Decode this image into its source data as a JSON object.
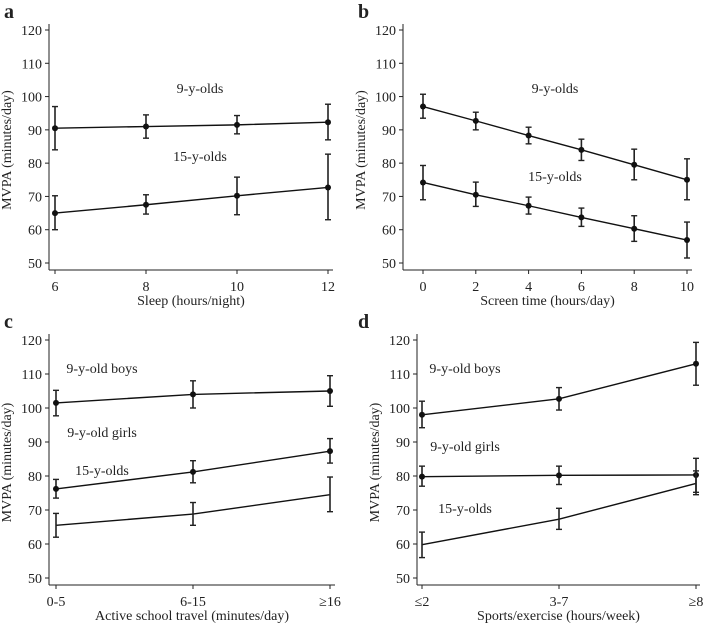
{
  "chart_data": [
    {
      "panel": "a",
      "type": "line",
      "xlabel": "Sleep (hours/night)",
      "ylabel": "MVPA (minutes/day)",
      "x": [
        6,
        8,
        10,
        12
      ],
      "xticks": [
        "6",
        "8",
        "10",
        "12"
      ],
      "ylim": [
        50,
        120
      ],
      "yticks": [
        "50",
        "60",
        "70",
        "80",
        "90",
        "100",
        "110",
        "120"
      ],
      "series": [
        {
          "name": "9-y-olds",
          "markers": true,
          "values": [
            90.5,
            91,
            91.5,
            92.3
          ],
          "lower": [
            84,
            87.5,
            88.8,
            87
          ],
          "upper": [
            97,
            94.5,
            94.3,
            97.7
          ]
        },
        {
          "name": "15-y-olds",
          "markers": true,
          "values": [
            65,
            67.5,
            70.2,
            72.7
          ],
          "lower": [
            60,
            64.7,
            64.5,
            63
          ],
          "upper": [
            70.2,
            70.5,
            75.8,
            82.7
          ]
        }
      ]
    },
    {
      "panel": "b",
      "type": "line",
      "xlabel": "Screen time (hours/day)",
      "ylabel": "MVPA (minutes/day)",
      "x": [
        0,
        2,
        4,
        6,
        8,
        10
      ],
      "xticks": [
        "0",
        "2",
        "4",
        "6",
        "8",
        "10"
      ],
      "ylim": [
        50,
        120
      ],
      "yticks": [
        "50",
        "60",
        "70",
        "80",
        "90",
        "100",
        "110",
        "120"
      ],
      "series": [
        {
          "name": "9-y-olds",
          "markers": true,
          "values": [
            97,
            92.7,
            88.3,
            84,
            79.5,
            75
          ],
          "lower": [
            93.5,
            90,
            85.8,
            80.8,
            75,
            69
          ],
          "upper": [
            100.7,
            95.3,
            90.8,
            87.2,
            84.2,
            81.3
          ]
        },
        {
          "name": "15-y-olds",
          "markers": true,
          "values": [
            74.2,
            70.5,
            67.2,
            63.7,
            60.3,
            56.9
          ],
          "lower": [
            69,
            67,
            64.7,
            61,
            56.5,
            51.5
          ],
          "upper": [
            79.3,
            74.3,
            69.8,
            66.5,
            64.2,
            62.3
          ]
        }
      ]
    },
    {
      "panel": "c",
      "type": "line",
      "xlabel": "Active school travel (minutes/day)",
      "ylabel": "MVPA (minutes/day)",
      "x": [
        0,
        1,
        2
      ],
      "xticks": [
        "0-5",
        "6-15",
        "≥16"
      ],
      "ylim": [
        50,
        120
      ],
      "yticks": [
        "50",
        "60",
        "70",
        "80",
        "90",
        "100",
        "110",
        "120"
      ],
      "series": [
        {
          "name": "9-y-old boys",
          "markers": true,
          "values": [
            101.5,
            104,
            105
          ],
          "lower": [
            97.7,
            100,
            100.5
          ],
          "upper": [
            105.2,
            108,
            109.5
          ]
        },
        {
          "name": "9-y-old girls",
          "markers": true,
          "values": [
            76.2,
            81.2,
            87.3
          ],
          "lower": [
            73.5,
            78,
            83.8
          ],
          "upper": [
            79,
            84.5,
            91
          ]
        },
        {
          "name": "15-y-olds",
          "markers": false,
          "values": [
            65.5,
            68.8,
            74.5
          ],
          "lower": [
            62,
            65.5,
            69.5
          ],
          "upper": [
            69,
            72.2,
            79.7
          ]
        }
      ]
    },
    {
      "panel": "d",
      "type": "line",
      "xlabel": "Sports/exercise (hours/week)",
      "ylabel": "MVPA (minutes/day)",
      "x": [
        0,
        1,
        2
      ],
      "xticks": [
        "≤2",
        "3-7",
        "≥8"
      ],
      "ylim": [
        50,
        120
      ],
      "yticks": [
        "50",
        "60",
        "70",
        "80",
        "90",
        "100",
        "110",
        "120"
      ],
      "series": [
        {
          "name": "9-y-old boys",
          "markers": true,
          "values": [
            98,
            102.7,
            113
          ],
          "lower": [
            94.2,
            99.4,
            106.7
          ],
          "upper": [
            102,
            106,
            119.3
          ]
        },
        {
          "name": "9-y-old girls",
          "markers": true,
          "values": [
            79.8,
            80.2,
            80.3
          ],
          "lower": [
            77,
            77.5,
            75.2
          ],
          "upper": [
            82.9,
            82.9,
            85.2
          ]
        },
        {
          "name": "15-y-olds",
          "markers": false,
          "values": [
            59.8,
            67.3,
            77.8
          ],
          "lower": [
            56,
            64.3,
            74.5
          ],
          "upper": [
            63.5,
            70.5,
            81.5
          ]
        }
      ]
    }
  ]
}
